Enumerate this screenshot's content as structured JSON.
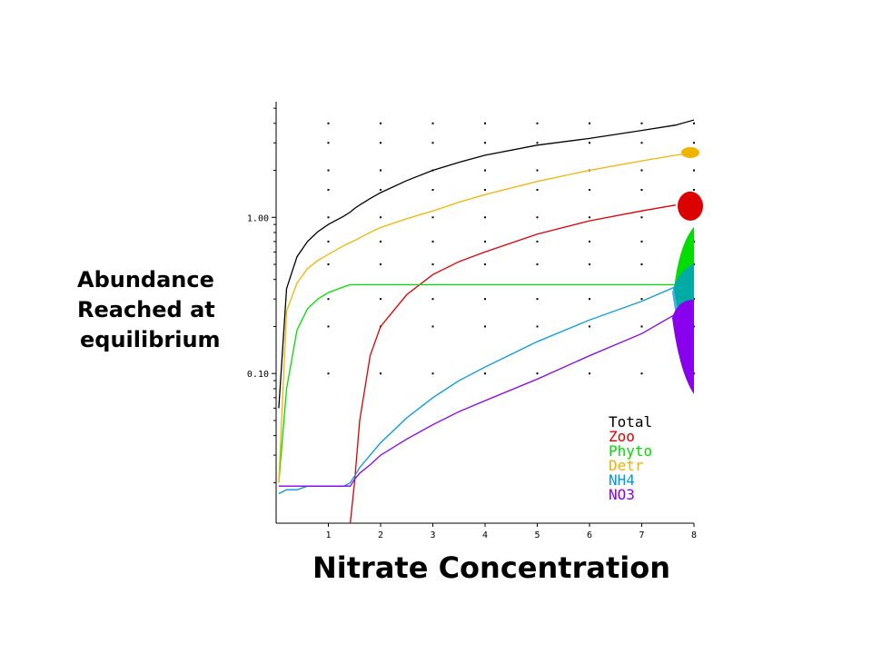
{
  "labels": {
    "ylabel_lines": [
      "Abundance",
      "Reached at",
      "equilibrium"
    ],
    "xlabel": "Nitrate Concentration"
  },
  "chart_data": {
    "type": "line",
    "x": [
      0.05,
      0.2,
      0.4,
      0.6,
      0.8,
      1.0,
      1.3,
      1.42,
      1.5,
      1.6,
      1.8,
      2.0,
      2.5,
      3.0,
      3.5,
      4.0,
      5.0,
      6.0,
      7.0,
      7.65,
      8.0
    ],
    "xlim": [
      0,
      8
    ],
    "xticks": [
      1,
      2,
      3,
      4,
      5,
      6,
      7,
      8
    ],
    "ylim": [
      0.011,
      5.5
    ],
    "yscale": "log",
    "yticks": [
      {
        "value": 0.1,
        "label": "0.10"
      },
      {
        "value": 1.0,
        "label": "1.00"
      }
    ],
    "grid": "dotted",
    "legend_position": "bottom-right",
    "series": [
      {
        "name": "Total",
        "color": "#000000",
        "values": [
          0.06,
          0.35,
          0.56,
          0.7,
          0.81,
          0.9,
          1.02,
          1.08,
          1.14,
          1.2,
          1.32,
          1.44,
          1.72,
          2.0,
          2.25,
          2.5,
          2.9,
          3.2,
          3.6,
          3.9,
          4.2
        ]
      },
      {
        "name": "Zoo",
        "color": "#dd0000",
        "values": [
          null,
          null,
          null,
          null,
          null,
          null,
          null,
          0.011,
          0.02,
          0.05,
          0.13,
          0.2,
          0.32,
          0.43,
          0.52,
          0.6,
          0.78,
          0.95,
          1.1,
          1.2,
          null
        ]
      },
      {
        "name": "Phyto",
        "color": "#00dd00",
        "values": [
          0.02,
          0.08,
          0.19,
          0.26,
          0.3,
          0.33,
          0.36,
          0.37,
          0.37,
          0.37,
          0.37,
          0.37,
          0.37,
          0.37,
          0.37,
          0.37,
          0.37,
          0.37,
          0.37,
          0.37,
          null
        ]
      },
      {
        "name": "Detr",
        "color": "#f0b400",
        "values": [
          0.02,
          0.25,
          0.38,
          0.47,
          0.53,
          0.58,
          0.66,
          0.69,
          0.71,
          0.74,
          0.8,
          0.86,
          0.98,
          1.1,
          1.25,
          1.4,
          1.7,
          2.0,
          2.3,
          2.5,
          2.6
        ]
      },
      {
        "name": "NH4",
        "color": "#0099dd",
        "values": [
          0.017,
          0.018,
          0.018,
          0.019,
          0.019,
          0.019,
          0.019,
          0.02,
          0.022,
          0.025,
          0.03,
          0.036,
          0.052,
          0.07,
          0.09,
          0.11,
          0.16,
          0.22,
          0.29,
          0.36,
          null
        ]
      },
      {
        "name": "NO3",
        "color": "#8800ee",
        "values": [
          0.019,
          0.019,
          0.019,
          0.019,
          0.019,
          0.019,
          0.019,
          0.019,
          0.021,
          0.023,
          0.026,
          0.03,
          0.038,
          0.047,
          0.057,
          0.067,
          0.092,
          0.13,
          0.18,
          0.24,
          null
        ]
      }
    ]
  }
}
